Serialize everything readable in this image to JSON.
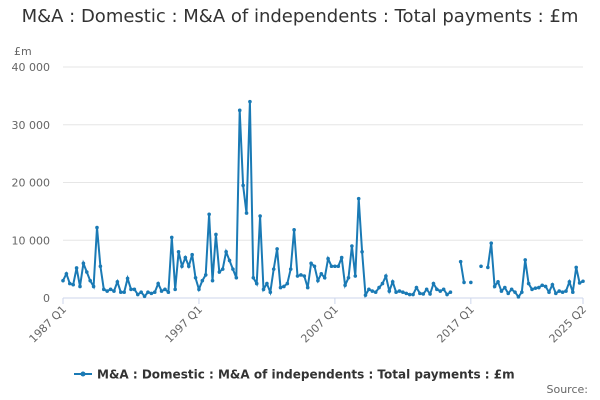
{
  "chart_data": {
    "type": "line",
    "title": "M&A : Domestic : M&A of independents : Total payments : £m",
    "y_unit": "£m",
    "source": "Source:",
    "categories": [
      "1987 Q1",
      null,
      null,
      null,
      null,
      null,
      null,
      null,
      null,
      null,
      null,
      null,
      null,
      null,
      null,
      null,
      null,
      null,
      null,
      null,
      null,
      null,
      null,
      null,
      null,
      null,
      null,
      null,
      null,
      null,
      null,
      null,
      null,
      null,
      null,
      null,
      null,
      null,
      null,
      null,
      "1997 Q1",
      null,
      null,
      null,
      null,
      null,
      null,
      null,
      null,
      null,
      null,
      null,
      null,
      null,
      null,
      null,
      null,
      null,
      null,
      null,
      null,
      null,
      null,
      null,
      null,
      null,
      null,
      null,
      null,
      null,
      null,
      null,
      null,
      null,
      null,
      null,
      null,
      null,
      null,
      null,
      "2007 Q1",
      null,
      null,
      null,
      null,
      null,
      null,
      null,
      null,
      null,
      null,
      null,
      null,
      null,
      null,
      null,
      null,
      null,
      null,
      null,
      null,
      null,
      null,
      null,
      null,
      null,
      null,
      null,
      null,
      null,
      null,
      null,
      null,
      null,
      null,
      null,
      null,
      null,
      null,
      null,
      "2017 Q1",
      null,
      null,
      null,
      null,
      null,
      null,
      null,
      null,
      null,
      null,
      null,
      null,
      null,
      null,
      null,
      null,
      null,
      null,
      null,
      null,
      null,
      null,
      null,
      null,
      null,
      null,
      null,
      null,
      null,
      null,
      null,
      null,
      "2025 Q2"
    ],
    "series": [
      {
        "name": "M&A : Domestic : M&A of independents : Total payments : £m",
        "color": "#1a7ab5",
        "values": [
          3000,
          4200,
          2500,
          2300,
          5200,
          2000,
          6000,
          4500,
          3000,
          2000,
          12200,
          5500,
          1500,
          1200,
          1500,
          1200,
          2800,
          1000,
          1000,
          3400,
          1500,
          1500,
          600,
          1000,
          300,
          1000,
          800,
          1000,
          2500,
          1200,
          1500,
          1000,
          10500,
          1500,
          8000,
          5500,
          7000,
          5500,
          7500,
          3500,
          1500,
          3000,
          4000,
          14500,
          3000,
          11000,
          4500,
          5000,
          8000,
          6500,
          5000,
          3500,
          32500,
          19500,
          14700,
          34000,
          3500,
          2500,
          14200,
          1500,
          2500,
          1000,
          5000,
          8500,
          1800,
          2000,
          2500,
          5000,
          11800,
          3800,
          4000,
          3800,
          1800,
          6000,
          5500,
          3000,
          4200,
          3500,
          6800,
          5500,
          5500,
          5500,
          7000,
          2200,
          3500,
          9000,
          3800,
          17200,
          8000,
          500,
          1500,
          1200,
          1000,
          1800,
          2500,
          3800,
          1200,
          2800,
          1000,
          1200,
          1000,
          800,
          600,
          600,
          1800,
          800,
          700,
          1500,
          700,
          2500,
          1500,
          1200,
          1500,
          600,
          1000,
          null,
          null,
          6300,
          2700,
          null,
          2700,
          null,
          null,
          5500,
          null,
          5300,
          9500,
          2000,
          2800,
          1200,
          1800,
          800,
          1500,
          1000,
          200,
          1000,
          6600,
          2500,
          1500,
          1700,
          1800,
          2200,
          2000,
          1000,
          2300,
          800,
          1200,
          1000,
          1200,
          2800,
          1000,
          5300,
          2600,
          2900
        ]
      }
    ],
    "ylim": [
      0,
      40000
    ],
    "yticks": [
      0,
      {
        "value": 10000,
        "label": "10 000"
      },
      {
        "value": 20000,
        "label": "20 000"
      },
      {
        "value": 30000,
        "label": "30 000"
      },
      {
        "value": 40000,
        "label": "40 000"
      }
    ],
    "grid": true,
    "legend": "bottom"
  }
}
